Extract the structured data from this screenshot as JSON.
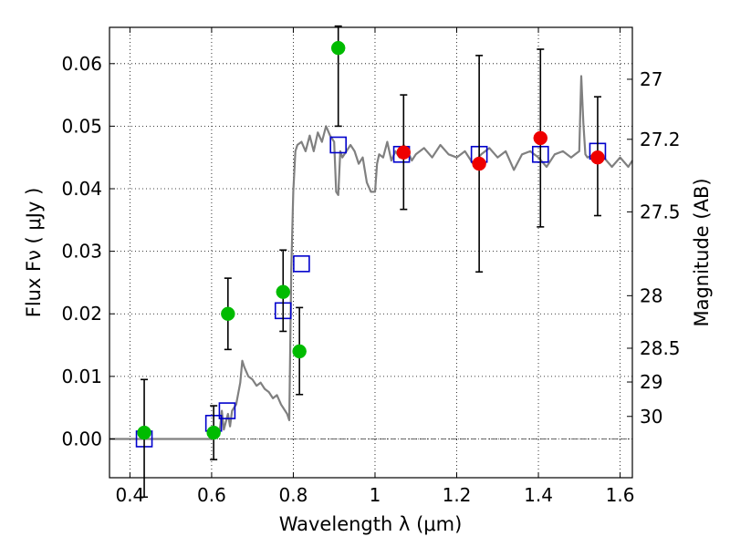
{
  "chart_data": {
    "type": "scatter",
    "xlabel": "Wavelength  λ (μm)",
    "ylabel": "Flux  Fν  ( μJy )",
    "ylabel_right": "Magnitude (AB)",
    "xlim": [
      0.35,
      1.63
    ],
    "ylim": [
      -0.0062,
      0.0658
    ],
    "grid": true,
    "x_ticks": [
      0.4,
      0.6,
      0.8,
      1.0,
      1.2,
      1.4,
      1.6
    ],
    "x_tick_labels": [
      "0.4",
      "0.6",
      "0.8",
      "1",
      "1.2",
      "1.4",
      "1.6"
    ],
    "y_ticks": [
      0.0,
      0.01,
      0.02,
      0.03,
      0.04,
      0.05,
      0.06
    ],
    "y_tick_labels": [
      "0.00",
      "0.01",
      "0.02",
      "0.03",
      "0.04",
      "0.05",
      "0.06"
    ],
    "right_ticks": [
      {
        "label": "27",
        "flux": 0.0575
      },
      {
        "label": "27.2",
        "flux": 0.0479
      },
      {
        "label": "27.5",
        "flux": 0.0363
      },
      {
        "label": "28",
        "flux": 0.0229
      },
      {
        "label": "28.5",
        "flux": 0.0145
      },
      {
        "label": "29",
        "flux": 0.0091
      },
      {
        "label": "30",
        "flux": 0.0036
      }
    ],
    "series": [
      {
        "kind": "line",
        "color": "#808080",
        "x": [
          0.35,
          0.58,
          0.6,
          0.615,
          0.62,
          0.625,
          0.63,
          0.64,
          0.645,
          0.65,
          0.66,
          0.67,
          0.675,
          0.68,
          0.69,
          0.7,
          0.71,
          0.72,
          0.73,
          0.74,
          0.75,
          0.76,
          0.77,
          0.78,
          0.785,
          0.79,
          0.795,
          0.8,
          0.805,
          0.81,
          0.82,
          0.83,
          0.84,
          0.85,
          0.86,
          0.87,
          0.88,
          0.89,
          0.9,
          0.905,
          0.91,
          0.915,
          0.92,
          0.93,
          0.94,
          0.95,
          0.96,
          0.97,
          0.98,
          0.99,
          1.0,
          1.005,
          1.01,
          1.02,
          1.03,
          1.04,
          1.05,
          1.06,
          1.07,
          1.08,
          1.09,
          1.1,
          1.12,
          1.14,
          1.16,
          1.18,
          1.2,
          1.22,
          1.24,
          1.26,
          1.28,
          1.3,
          1.32,
          1.34,
          1.36,
          1.38,
          1.4,
          1.42,
          1.44,
          1.46,
          1.48,
          1.49,
          1.5,
          1.505,
          1.51,
          1.515,
          1.52,
          1.54,
          1.56,
          1.58,
          1.6,
          1.62,
          1.63
        ],
        "y": [
          0.0,
          0.0,
          0.0,
          0.0005,
          0.0015,
          0.0045,
          0.0015,
          0.004,
          0.002,
          0.0045,
          0.0055,
          0.009,
          0.0125,
          0.0115,
          0.01,
          0.0095,
          0.0085,
          0.009,
          0.008,
          0.0075,
          0.0065,
          0.007,
          0.0055,
          0.0045,
          0.004,
          0.003,
          0.027,
          0.0395,
          0.046,
          0.047,
          0.0475,
          0.046,
          0.0485,
          0.046,
          0.049,
          0.0475,
          0.05,
          0.0485,
          0.0475,
          0.0395,
          0.039,
          0.046,
          0.045,
          0.046,
          0.047,
          0.046,
          0.044,
          0.045,
          0.041,
          0.0395,
          0.0395,
          0.044,
          0.0455,
          0.045,
          0.0475,
          0.0445,
          0.046,
          0.045,
          0.047,
          0.046,
          0.0445,
          0.0455,
          0.0465,
          0.045,
          0.047,
          0.0455,
          0.045,
          0.046,
          0.044,
          0.0455,
          0.0465,
          0.045,
          0.046,
          0.043,
          0.0455,
          0.046,
          0.045,
          0.0435,
          0.0455,
          0.046,
          0.045,
          0.0455,
          0.046,
          0.058,
          0.0505,
          0.0455,
          0.045,
          0.0455,
          0.045,
          0.0435,
          0.045,
          0.0435,
          0.0445
        ]
      },
      {
        "kind": "squares",
        "color": "#0000cc",
        "x": [
          0.435,
          0.605,
          0.638,
          0.775,
          0.82,
          0.91,
          1.065,
          1.255,
          1.405,
          1.545
        ],
        "y": [
          0.0,
          0.0025,
          0.0045,
          0.0205,
          0.028,
          0.047,
          0.0455,
          0.0455,
          0.0455,
          0.046
        ]
      },
      {
        "kind": "points",
        "color": "#00bb00",
        "x": [
          0.435,
          0.605,
          0.64,
          0.775,
          0.815,
          0.91
        ],
        "y": [
          0.001,
          0.001,
          0.02,
          0.0235,
          0.014,
          0.0625
        ],
        "yerr_low": [
          0.0103,
          0.0043,
          0.0057,
          0.0063,
          0.0069,
          0.0125
        ],
        "yerr_high": [
          0.0085,
          0.0043,
          0.0057,
          0.0067,
          0.007,
          0.0035
        ]
      },
      {
        "kind": "points",
        "color": "#ee0000",
        "x": [
          1.07,
          1.255,
          1.405,
          1.545
        ],
        "y": [
          0.0458,
          0.044,
          0.0481,
          0.045
        ],
        "yerr_low": [
          0.0091,
          0.0173,
          0.0142,
          0.0093
        ],
        "yerr_high": [
          0.0092,
          0.0173,
          0.0142,
          0.0097
        ]
      }
    ]
  }
}
